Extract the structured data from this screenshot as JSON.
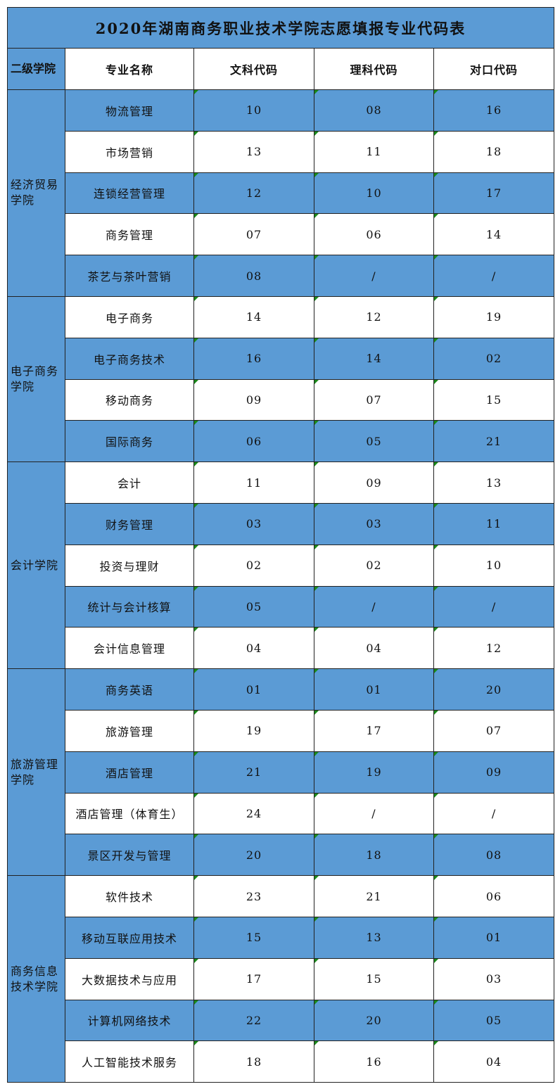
{
  "title": "2020年湖南商务职业技术学院志愿填报专业代码表",
  "headers": [
    "二级学院",
    "专业名称",
    "文科代码",
    "理科代码",
    "对口代码"
  ],
  "colors": {
    "accent": "#5b9bd5",
    "indicator": "#1a8a1a"
  },
  "groups": [
    {
      "name": "经济贸易学院",
      "lines": [
        "经济贸易",
        "学院"
      ],
      "rows": [
        {
          "major": "物流管理",
          "wen": "10",
          "li": "08",
          "dui": "16"
        },
        {
          "major": "市场营销",
          "wen": "13",
          "li": "11",
          "dui": "18"
        },
        {
          "major": "连锁经营管理",
          "wen": "12",
          "li": "10",
          "dui": "17"
        },
        {
          "major": "商务管理",
          "wen": "07",
          "li": "06",
          "dui": "14"
        },
        {
          "major": "茶艺与茶叶营销",
          "wen": "08",
          "li": "/",
          "dui": "/"
        }
      ]
    },
    {
      "name": "电子商务学院",
      "lines": [
        "电子商务",
        "学院"
      ],
      "rows": [
        {
          "major": "电子商务",
          "wen": "14",
          "li": "12",
          "dui": "19"
        },
        {
          "major": "电子商务技术",
          "wen": "16",
          "li": "14",
          "dui": "02"
        },
        {
          "major": "移动商务",
          "wen": "09",
          "li": "07",
          "dui": "15"
        },
        {
          "major": "国际商务",
          "wen": "06",
          "li": "05",
          "dui": "21"
        }
      ]
    },
    {
      "name": "会计学院",
      "lines": [
        "会计学院"
      ],
      "rows": [
        {
          "major": "会计",
          "wen": "11",
          "li": "09",
          "dui": "13"
        },
        {
          "major": "财务管理",
          "wen": "03",
          "li": "03",
          "dui": "11"
        },
        {
          "major": "投资与理财",
          "wen": "02",
          "li": "02",
          "dui": "10"
        },
        {
          "major": "统计与会计核算",
          "wen": "05",
          "li": "/",
          "dui": "/"
        },
        {
          "major": "会计信息管理",
          "wen": "04",
          "li": "04",
          "dui": "12"
        }
      ]
    },
    {
      "name": "旅游管理学院",
      "lines": [
        "旅游管理",
        "学院"
      ],
      "rows": [
        {
          "major": "商务英语",
          "wen": "01",
          "li": "01",
          "dui": "20"
        },
        {
          "major": "旅游管理",
          "wen": "19",
          "li": "17",
          "dui": "07"
        },
        {
          "major": "酒店管理",
          "wen": "21",
          "li": "19",
          "dui": "09"
        },
        {
          "major": "酒店管理（体育生）",
          "wen": "24",
          "li": "/",
          "dui": "/"
        },
        {
          "major": "景区开发与管理",
          "wen": "20",
          "li": "18",
          "dui": "08"
        }
      ]
    },
    {
      "name": "商务信息技术学院",
      "lines": [
        "商务信息",
        "技术学院"
      ],
      "rows": [
        {
          "major": "软件技术",
          "wen": "23",
          "li": "21",
          "dui": "06"
        },
        {
          "major": "移动互联应用技术",
          "wen": "15",
          "li": "13",
          "dui": "01"
        },
        {
          "major": "大数据技术与应用",
          "wen": "17",
          "li": "15",
          "dui": "03"
        },
        {
          "major": "计算机网络技术",
          "wen": "22",
          "li": "20",
          "dui": "05"
        },
        {
          "major": "人工智能技术服务",
          "wen": "18",
          "li": "16",
          "dui": "04"
        }
      ]
    }
  ]
}
